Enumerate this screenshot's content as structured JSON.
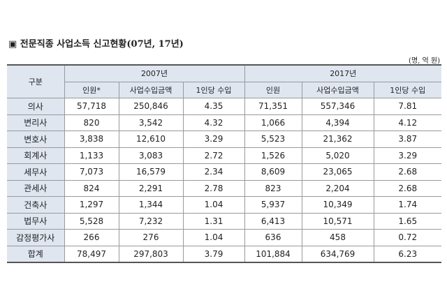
{
  "header": {
    "title": "▣ 전문직종 사업소득 신고현황(07년, 17년)",
    "unit": "(명, 억 원)"
  },
  "table": {
    "corner": "구분",
    "groups": [
      "2007년",
      "2017년"
    ],
    "columns": [
      "인원*",
      "사업수입금액",
      "1인당 수입",
      "인원",
      "사업수입금액",
      "1인당 수입"
    ],
    "rows": [
      [
        "의사",
        "57,718",
        "250,846",
        "4.35",
        "71,351",
        "557,346",
        "7.81"
      ],
      [
        "변리사",
        "820",
        "3,542",
        "4.32",
        "1,066",
        "4,394",
        "4.12"
      ],
      [
        "변호사",
        "3,838",
        "12,610",
        "3.29",
        "5,523",
        "21,362",
        "3.87"
      ],
      [
        "회계사",
        "1,133",
        "3,083",
        "2.72",
        "1,526",
        "5,020",
        "3.29"
      ],
      [
        "세무사",
        "7,073",
        "16,579",
        "2.34",
        "8,609",
        "23,065",
        "2.68"
      ],
      [
        "관세사",
        "824",
        "2,291",
        "2.78",
        "823",
        "2,204",
        "2.68"
      ],
      [
        "건축사",
        "1,297",
        "1,344",
        "1.04",
        "5,937",
        "10,349",
        "1.74"
      ],
      [
        "법무사",
        "5,528",
        "7,232",
        "1.31",
        "6,413",
        "10,571",
        "1.65"
      ],
      [
        "감정평가사",
        "266",
        "276",
        "1.04",
        "636",
        "458",
        "0.72"
      ],
      [
        "합계",
        "78,497",
        "297,803",
        "3.79",
        "101,884",
        "634,769",
        "6.23"
      ]
    ]
  }
}
